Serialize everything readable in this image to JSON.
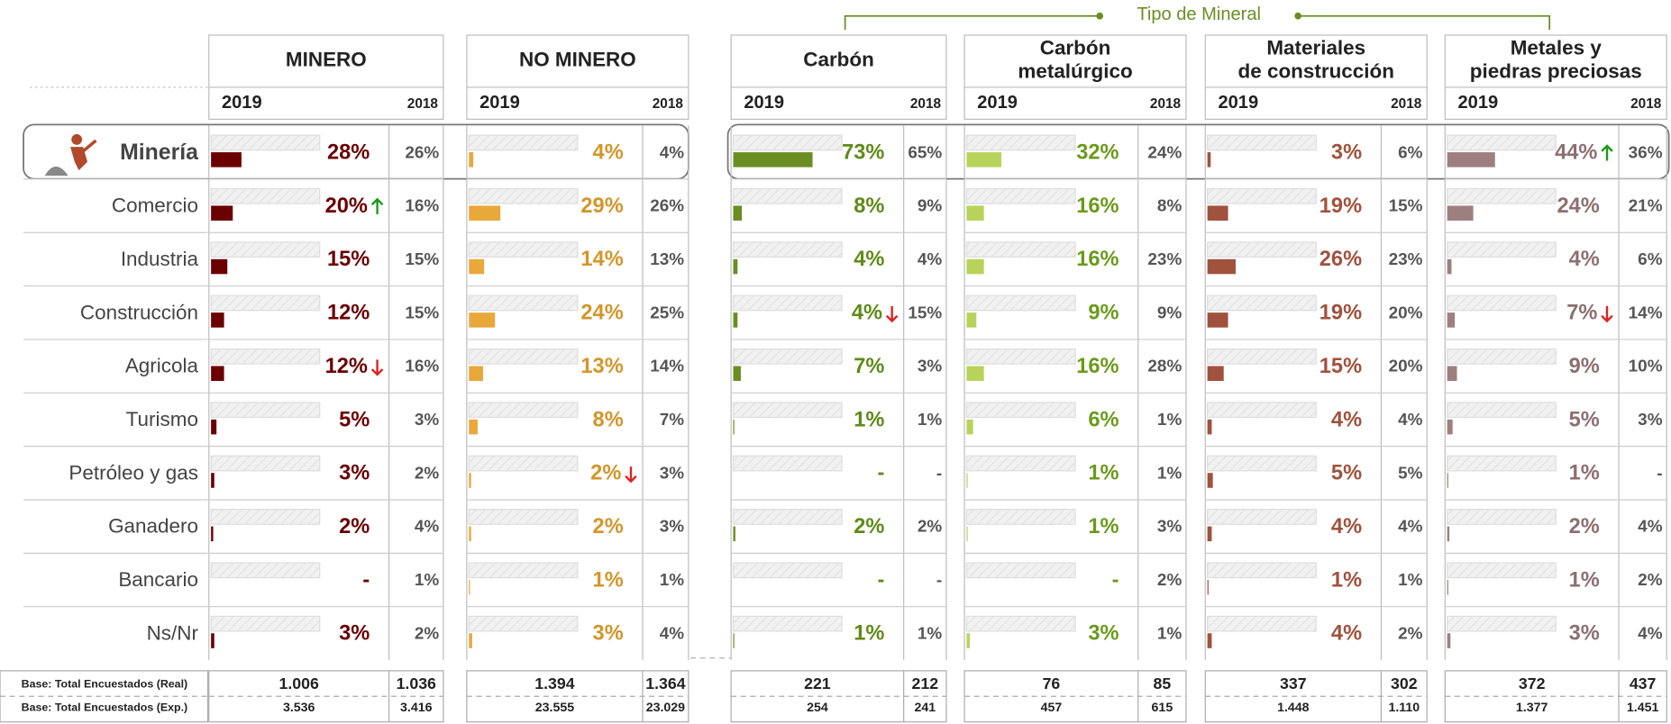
{
  "header": {
    "group_label": "Tipo de Mineral"
  },
  "row_labels": [
    "Minería",
    "Comercio",
    "Industria",
    "Construcción",
    "Agricola",
    "Turismo",
    "Petróleo y gas",
    "Ganadero",
    "Bancario",
    "Ns/Nr"
  ],
  "base_labels": [
    "Base: Total Encuestados (Real)",
    "Base: Total Encuestados (Exp.)"
  ],
  "xlim": [
    0,
    100
  ],
  "columns": [
    {
      "title": [
        "MINERO"
      ],
      "year": "2019",
      "prev_year": "2018",
      "color": "#6b0000",
      "text_color": "#6b0000",
      "values": [
        28,
        20,
        15,
        12,
        12,
        5,
        3,
        2,
        null,
        3
      ],
      "value_labels": [
        "28%",
        "20%",
        "15%",
        "12%",
        "12%",
        "5%",
        "3%",
        "2%",
        "-",
        "3%"
      ],
      "prev_labels": [
        "26%",
        "16%",
        "15%",
        "15%",
        "16%",
        "3%",
        "2%",
        "4%",
        "1%",
        "2%"
      ],
      "arrows": [
        null,
        "up",
        null,
        null,
        "down",
        null,
        null,
        null,
        null,
        null
      ],
      "base_real": "1.006",
      "base_real_prev": "1.036",
      "base_exp": "3.536",
      "base_exp_prev": "3.416"
    },
    {
      "title": [
        "NO MINERO"
      ],
      "year": "2019",
      "prev_year": "2018",
      "color": "#e8a83a",
      "text_color": "#d4952a",
      "values": [
        4,
        29,
        14,
        24,
        13,
        8,
        2,
        2,
        1,
        3
      ],
      "value_labels": [
        "4%",
        "29%",
        "14%",
        "24%",
        "13%",
        "8%",
        "2%",
        "2%",
        "1%",
        "3%"
      ],
      "prev_labels": [
        "4%",
        "26%",
        "13%",
        "25%",
        "14%",
        "7%",
        "3%",
        "3%",
        "1%",
        "4%"
      ],
      "arrows": [
        null,
        null,
        null,
        null,
        null,
        null,
        "down",
        null,
        null,
        null
      ],
      "base_real": "1.394",
      "base_real_prev": "1.364",
      "base_exp": "23.555",
      "base_exp_prev": "23.029"
    },
    {
      "title": [
        "Carbón"
      ],
      "year": "2019",
      "prev_year": "2018",
      "color": "#6b8e23",
      "text_color": "#5f8a18",
      "values": [
        73,
        8,
        4,
        4,
        7,
        1,
        null,
        2,
        null,
        1
      ],
      "value_labels": [
        "73%",
        "8%",
        "4%",
        "4%",
        "7%",
        "1%",
        "-",
        "2%",
        "-",
        "1%"
      ],
      "prev_labels": [
        "65%",
        "9%",
        "4%",
        "15%",
        "3%",
        "1%",
        "-",
        "2%",
        "-",
        "1%"
      ],
      "arrows": [
        null,
        null,
        null,
        "down",
        null,
        null,
        null,
        null,
        null,
        null
      ],
      "base_real": "221",
      "base_real_prev": "212",
      "base_exp": "254",
      "base_exp_prev": "241"
    },
    {
      "title": [
        "Carbón",
        "metalúrgico"
      ],
      "year": "2019",
      "prev_year": "2018",
      "color": "#b8d35c",
      "text_color": "#6a9a1a",
      "values": [
        32,
        16,
        16,
        9,
        16,
        6,
        1,
        1,
        null,
        3
      ],
      "value_labels": [
        "32%",
        "16%",
        "16%",
        "9%",
        "16%",
        "6%",
        "1%",
        "1%",
        "-",
        "3%"
      ],
      "prev_labels": [
        "24%",
        "8%",
        "23%",
        "9%",
        "28%",
        "1%",
        "1%",
        "3%",
        "2%",
        "1%"
      ],
      "arrows": [
        null,
        null,
        null,
        null,
        null,
        null,
        null,
        null,
        null,
        null
      ],
      "base_real": "76",
      "base_real_prev": "85",
      "base_exp": "457",
      "base_exp_prev": "615"
    },
    {
      "title": [
        "Materiales",
        "de construcción"
      ],
      "year": "2019",
      "prev_year": "2018",
      "color": "#a0523d",
      "text_color": "#a0523d",
      "values": [
        3,
        19,
        26,
        19,
        15,
        4,
        5,
        4,
        1,
        4
      ],
      "value_labels": [
        "3%",
        "19%",
        "26%",
        "19%",
        "15%",
        "4%",
        "5%",
        "4%",
        "1%",
        "4%"
      ],
      "prev_labels": [
        "6%",
        "15%",
        "23%",
        "20%",
        "20%",
        "4%",
        "5%",
        "4%",
        "1%",
        "2%"
      ],
      "arrows": [
        null,
        null,
        null,
        null,
        null,
        null,
        null,
        null,
        null,
        null
      ],
      "base_real": "337",
      "base_real_prev": "302",
      "base_exp": "1.448",
      "base_exp_prev": "1.110"
    },
    {
      "title": [
        "Metales y",
        "piedras preciosas"
      ],
      "year": "2019",
      "prev_year": "2018",
      "color": "#9e7f80",
      "text_color": "#8c6f70",
      "values": [
        44,
        24,
        4,
        7,
        9,
        5,
        1,
        2,
        1,
        3
      ],
      "value_labels": [
        "44%",
        "24%",
        "4%",
        "7%",
        "9%",
        "5%",
        "1%",
        "2%",
        "1%",
        "3%"
      ],
      "prev_labels": [
        "36%",
        "21%",
        "6%",
        "14%",
        "10%",
        "3%",
        "-",
        "4%",
        "2%",
        "4%"
      ],
      "arrows": [
        "up",
        null,
        null,
        "down",
        null,
        null,
        null,
        null,
        null,
        null
      ],
      "base_real": "372",
      "base_real_prev": "437",
      "base_exp": "1.377",
      "base_exp_prev": "1.451"
    }
  ]
}
